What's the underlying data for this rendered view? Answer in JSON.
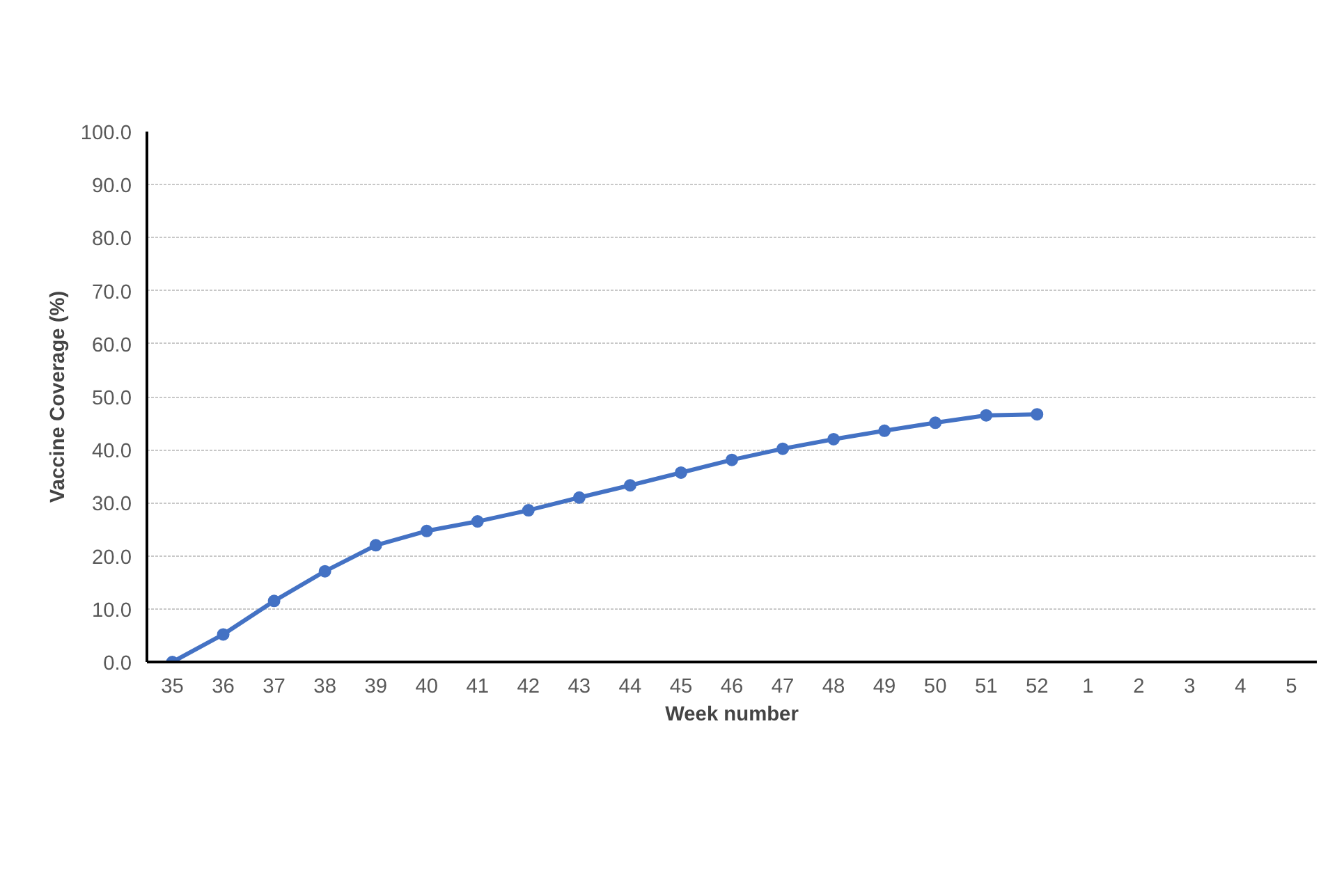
{
  "chart_data": {
    "type": "line",
    "xlabel": "Week number",
    "ylabel": "Vaccine Coverage (%)",
    "categories": [
      "35",
      "36",
      "37",
      "38",
      "39",
      "40",
      "41",
      "42",
      "43",
      "44",
      "45",
      "46",
      "47",
      "48",
      "49",
      "50",
      "51",
      "52",
      "1",
      "2",
      "3",
      "4",
      "5"
    ],
    "series": [
      {
        "color": "#4472c4",
        "values": [
          0.0,
          5.2,
          11.5,
          17.1,
          22.0,
          24.7,
          26.5,
          28.6,
          31.0,
          33.3,
          35.7,
          38.1,
          40.2,
          42.0,
          43.6,
          45.1,
          46.5,
          46.7,
          null,
          null,
          null,
          null,
          null
        ]
      }
    ],
    "ylim": [
      0,
      100
    ],
    "yticks": [
      {
        "value": 0,
        "label": "0.0"
      },
      {
        "value": 10,
        "label": "10.0"
      },
      {
        "value": 20,
        "label": "20.0"
      },
      {
        "value": 30,
        "label": "30.0"
      },
      {
        "value": 40,
        "label": "40.0"
      },
      {
        "value": 50,
        "label": "50.0"
      },
      {
        "value": 60,
        "label": "60.0"
      },
      {
        "value": 70,
        "label": "70.0"
      },
      {
        "value": 80,
        "label": "80.0"
      },
      {
        "value": 90,
        "label": "90.0"
      },
      {
        "value": 100,
        "label": "100.0"
      }
    ],
    "grid": "y",
    "marker": "circle",
    "line_style": "solid"
  }
}
